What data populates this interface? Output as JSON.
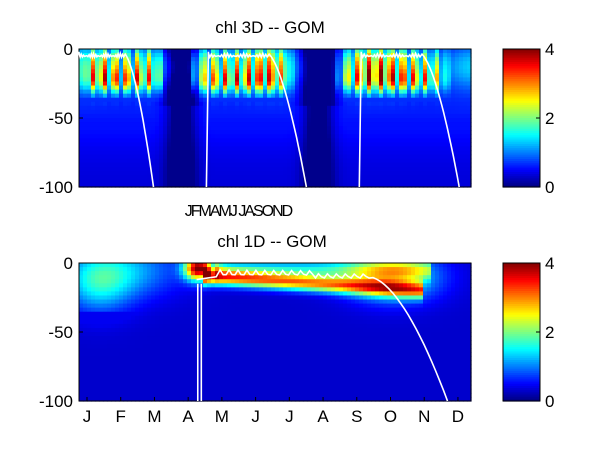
{
  "chart_data": [
    {
      "type": "heatmap",
      "title": "chl 3D   -- GOM",
      "ylim": [
        -100,
        0
      ],
      "yticks": [
        0,
        -50,
        -100
      ],
      "xticks": [],
      "xlabel_text": "JFMAMJ JASOND",
      "colorbar": {
        "clim": [
          0,
          4
        ],
        "ticks": [
          0,
          2,
          4
        ],
        "colormap": "jet"
      },
      "mixed_layer_line_color": "#ffffff",
      "bloom_periods_approx": [
        {
          "x_start_frac": 0.0,
          "x_end_frac": 0.22,
          "peak_chl": 3.6,
          "peak_depth_range": [
            -32,
            -15
          ]
        },
        {
          "x_start_frac": 0.28,
          "x_end_frac": 0.55,
          "peak_chl": 3.3,
          "peak_depth_range": [
            -30,
            -18
          ]
        },
        {
          "x_start_frac": 0.65,
          "x_end_frac": 0.95,
          "peak_chl": 3.6,
          "peak_depth_range": [
            -32,
            -15
          ]
        }
      ]
    },
    {
      "type": "heatmap",
      "title": "chl 1D   -- GOM",
      "ylim": [
        -100,
        0
      ],
      "yticks": [
        0,
        -50,
        -100
      ],
      "xticks": [
        "J",
        "F",
        "M",
        "A",
        "M",
        "J",
        "J",
        "A",
        "S",
        "O",
        "N",
        "D"
      ],
      "colorbar": {
        "clim": [
          0,
          4
        ],
        "ticks": [
          0,
          2,
          4
        ],
        "colormap": "jet"
      },
      "mixed_layer_line_color": "#ffffff",
      "bloom_approx": {
        "month_start": "A",
        "month_end": "M",
        "peak_chl": 4.0,
        "peak_depth_range": [
          -10,
          0
        ]
      }
    }
  ]
}
